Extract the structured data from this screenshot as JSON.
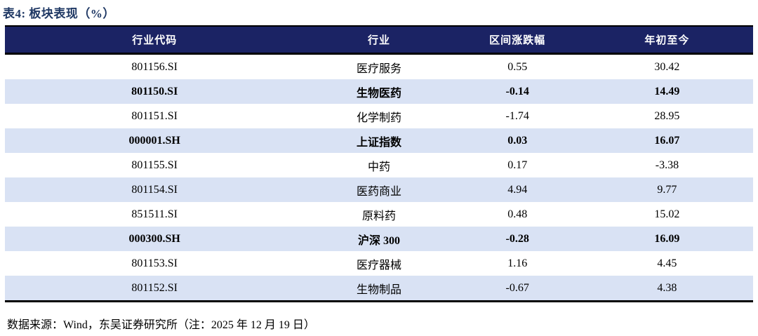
{
  "title": "表4: 板块表现（%）",
  "table": {
    "columns": [
      "行业代码",
      "行业",
      "区间涨跌幅",
      "年初至今"
    ],
    "rows": [
      {
        "code": "801156.SI",
        "industry": "医疗服务",
        "interval": "0.55",
        "ytd": "30.42",
        "bold": false
      },
      {
        "code": "801150.SI",
        "industry": "生物医药",
        "interval": "-0.14",
        "ytd": "14.49",
        "bold": true
      },
      {
        "code": "801151.SI",
        "industry": "化学制药",
        "interval": "-1.74",
        "ytd": "28.95",
        "bold": false
      },
      {
        "code": "000001.SH",
        "industry": "上证指数",
        "interval": "0.03",
        "ytd": "16.07",
        "bold": true
      },
      {
        "code": "801155.SI",
        "industry": "中药",
        "interval": "0.17",
        "ytd": "-3.38",
        "bold": false
      },
      {
        "code": "801154.SI",
        "industry": "医药商业",
        "interval": "4.94",
        "ytd": "9.77",
        "bold": false
      },
      {
        "code": "851511.SI",
        "industry": "原料药",
        "interval": "0.48",
        "ytd": "15.02",
        "bold": false
      },
      {
        "code": "000300.SH",
        "industry": "沪深 300",
        "interval": "-0.28",
        "ytd": "16.09",
        "bold": true
      },
      {
        "code": "801153.SI",
        "industry": "医疗器械",
        "interval": "1.16",
        "ytd": "4.45",
        "bold": false
      },
      {
        "code": "801152.SI",
        "industry": "生物制品",
        "interval": "-0.67",
        "ytd": "4.38",
        "bold": false
      }
    ]
  },
  "footer": "数据来源：Wind，东吴证券研究所（注：2025 年 12 月 19 日）",
  "colors": {
    "header_bg": "#1B2364",
    "stripe_bg": "#D9E2F4",
    "title_color": "#1F3864",
    "border_color": "#000000"
  }
}
